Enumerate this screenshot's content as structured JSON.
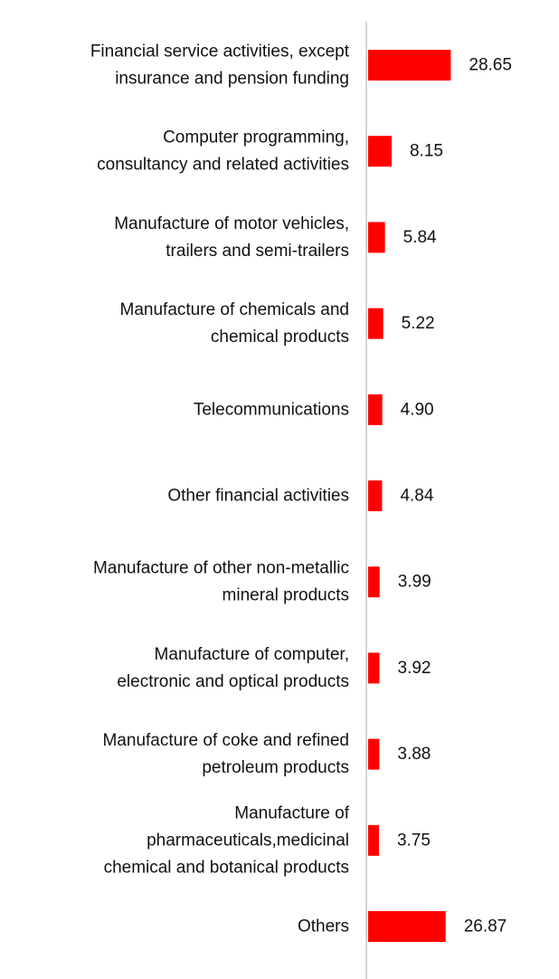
{
  "chart_data": {
    "type": "bar",
    "orientation": "horizontal",
    "categories": [
      [
        "Financial service activities, except",
        "insurance and pension funding"
      ],
      [
        "Computer programming,",
        "consultancy and related activities"
      ],
      [
        "Manufacture of motor vehicles,",
        "trailers and semi-trailers"
      ],
      [
        "Manufacture of chemicals and",
        "chemical products"
      ],
      [
        "Telecommunications"
      ],
      [
        "Other financial activities"
      ],
      [
        "Manufacture of other non-metallic",
        "mineral products"
      ],
      [
        "Manufacture of computer,",
        "electronic and optical products"
      ],
      [
        "Manufacture of coke and refined",
        "petroleum products"
      ],
      [
        "Manufacture of",
        "pharmaceuticals,medicinal",
        "chemical and botanical products"
      ],
      [
        "Others"
      ]
    ],
    "values": [
      28.65,
      8.15,
      5.84,
      5.22,
      4.9,
      4.84,
      3.99,
      3.92,
      3.88,
      3.75,
      26.87
    ],
    "value_labels": [
      "28.65",
      "8.15",
      "5.84",
      "5.22",
      "4.90",
      "4.84",
      "3.99",
      "3.92",
      "3.88",
      "3.75",
      "26.87"
    ],
    "xlim": [
      0,
      100
    ],
    "grid": false,
    "legend": "none",
    "bar_color": "#ff0000",
    "axis_color": "#c8c8c8"
  }
}
